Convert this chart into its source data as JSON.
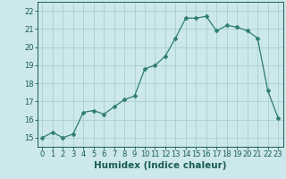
{
  "x": [
    0,
    1,
    2,
    3,
    4,
    5,
    6,
    7,
    8,
    9,
    10,
    11,
    12,
    13,
    14,
    15,
    16,
    17,
    18,
    19,
    20,
    21,
    22,
    23
  ],
  "y": [
    15.0,
    15.3,
    15.0,
    15.2,
    16.4,
    16.5,
    16.3,
    16.7,
    17.1,
    17.3,
    18.8,
    19.0,
    19.5,
    20.5,
    21.6,
    21.6,
    21.7,
    20.9,
    21.2,
    21.1,
    20.9,
    20.5,
    17.6,
    16.1
  ],
  "line_color": "#2e7d6e",
  "marker": "D",
  "marker_size": 2.5,
  "bg_color": "#cce8ea",
  "grid_color": "#aacfd2",
  "xlabel": "Humidex (Indice chaleur)",
  "xlim": [
    -0.5,
    23.5
  ],
  "ylim": [
    14.5,
    22.5
  ],
  "yticks": [
    15,
    16,
    17,
    18,
    19,
    20,
    21,
    22
  ],
  "xticks": [
    0,
    1,
    2,
    3,
    4,
    5,
    6,
    7,
    8,
    9,
    10,
    11,
    12,
    13,
    14,
    15,
    16,
    17,
    18,
    19,
    20,
    21,
    22,
    23
  ],
  "tick_color": "#1a5c52",
  "axis_color": "#1a5c52",
  "label_fontsize": 7.5,
  "tick_fontsize": 6.0
}
